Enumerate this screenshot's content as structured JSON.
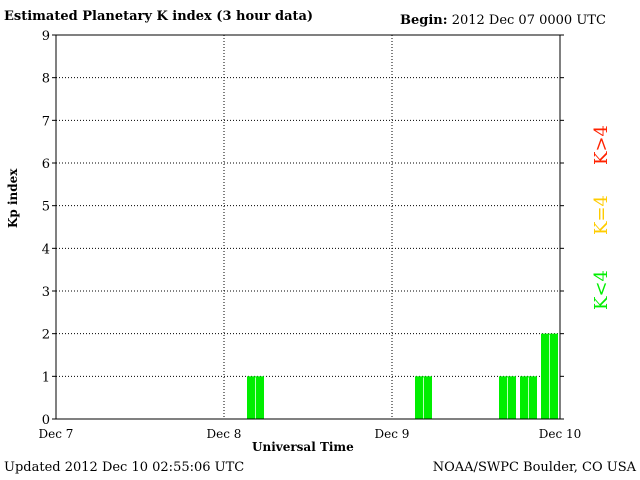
{
  "header": {
    "title": "Estimated Planetary K index (3 hour data)",
    "begin_label": "Begin:",
    "begin_value": "2012 Dec 07 0000 UTC"
  },
  "footer": {
    "updated": "Updated 2012 Dec 10 02:55:06 UTC",
    "source": "NOAA/SWPC Boulder, CO USA"
  },
  "legend": [
    {
      "label": "K>4",
      "color": "#ff2200"
    },
    {
      "label": "K=4",
      "color": "#ffcc00"
    },
    {
      "label": "K<4",
      "color": "#00ee00"
    }
  ],
  "chart_data": {
    "type": "bar",
    "title": "Estimated Planetary K index (3 hour data)",
    "xlabel": "Universal Time",
    "ylabel": "Kp index",
    "ylim": [
      0,
      9
    ],
    "yticks": [
      0,
      1,
      2,
      3,
      4,
      5,
      6,
      7,
      8,
      9
    ],
    "xticks": [
      "Dec 7",
      "Dec 8",
      "Dec 9",
      "Dec 10"
    ],
    "bins_per_day": 8,
    "days": 3,
    "grid": true,
    "bar_color": "#00ee00",
    "values": [
      0,
      0,
      0,
      0,
      0,
      0,
      0,
      0,
      0,
      1,
      0,
      0,
      0,
      0,
      0,
      0,
      0,
      1,
      0,
      0,
      0,
      1,
      1,
      2
    ]
  }
}
